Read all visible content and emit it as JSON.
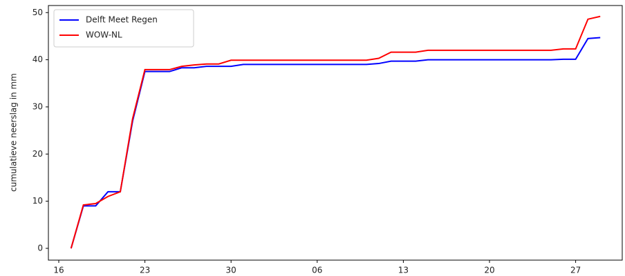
{
  "chart_data": {
    "type": "line",
    "y_label": "cumulatieve neerslag in mm",
    "categories": [
      "16",
      null,
      null,
      null,
      null,
      null,
      null,
      "23",
      null,
      null,
      null,
      null,
      null,
      null,
      "30",
      null,
      null,
      null,
      null,
      null,
      null,
      "06",
      null,
      null,
      null,
      null,
      null,
      null,
      "13",
      null,
      null,
      null,
      null,
      null,
      null,
      "20",
      null,
      null,
      null,
      null,
      null,
      null,
      "27",
      null,
      null
    ],
    "series": [
      {
        "name": "Delft Meet Regen",
        "color": "#0000ff",
        "values": [
          null,
          0,
          9,
          9,
          12,
          12,
          27,
          37.5,
          37.5,
          37.5,
          38.3,
          38.3,
          38.6,
          38.6,
          38.6,
          39,
          39,
          39,
          39,
          39,
          39,
          39,
          39,
          39,
          39,
          39,
          39.2,
          39.7,
          39.7,
          39.7,
          40,
          40,
          40,
          40,
          40,
          40,
          40,
          40,
          40,
          40,
          40,
          40.1,
          40.1,
          44.5,
          44.7
        ]
      },
      {
        "name": "WOW-NL",
        "color": "#ff0000",
        "values": [
          null,
          0,
          9.2,
          9.5,
          11,
          12,
          27.5,
          37.9,
          37.9,
          37.9,
          38.6,
          38.9,
          39.1,
          39.1,
          39.9,
          39.9,
          39.9,
          39.9,
          39.9,
          39.9,
          39.9,
          39.9,
          39.9,
          39.9,
          39.9,
          39.9,
          40.3,
          41.6,
          41.6,
          41.6,
          42,
          42,
          42,
          42,
          42,
          42,
          42,
          42,
          42,
          42,
          42,
          42.3,
          42.3,
          48.6,
          49.2
        ]
      }
    ],
    "ylim": [
      -2.5,
      51.5
    ],
    "yticks": [
      0,
      10,
      20,
      30,
      40,
      50
    ],
    "grid": false,
    "legend": "upper-left"
  }
}
